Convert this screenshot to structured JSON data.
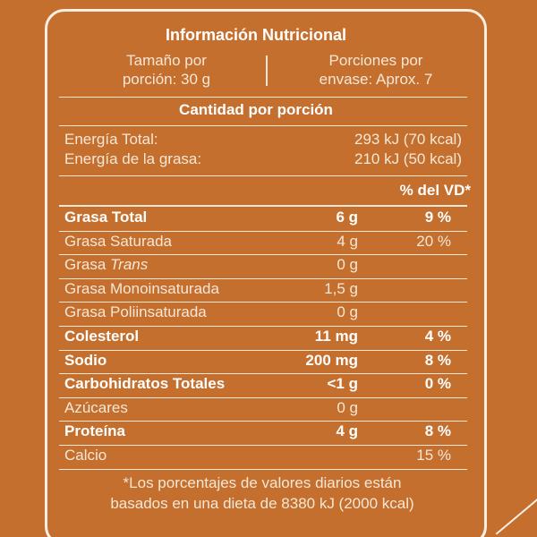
{
  "header": {
    "title": "Información Nutricional",
    "serving_size": [
      "Tamaño por",
      "porción: 30 g"
    ],
    "servings": [
      "Porciones por",
      "envase: Aprox. 7"
    ]
  },
  "amount_header": "Cantidad por porción",
  "energy": [
    [
      "Energía Total:",
      "293 kJ (70 kcal)"
    ],
    [
      "Energía de la grasa:",
      "210 kJ (50 kcal)"
    ]
  ],
  "dv_header": "% del VD*",
  "table": {
    "rows": [
      {
        "name": "Grasa Total",
        "amount": "6 g",
        "dv": "9 %",
        "bold": true
      },
      {
        "name": "Grasa Saturada",
        "amount": "4 g",
        "dv": "20 %",
        "bold": false
      },
      {
        "name": "Grasa",
        "name_italic": "Trans",
        "amount": "0 g",
        "bold": false
      },
      {
        "name": "Grasa Monoinsaturada",
        "amount": "1,5 g",
        "bold": false
      },
      {
        "name": "Grasa Poliinsaturada",
        "amount": "0 g",
        "bold": false
      },
      {
        "name": "Colesterol",
        "amount": "11 mg",
        "dv": "4 %",
        "bold": true
      },
      {
        "name": "Sodio",
        "amount": "200 mg",
        "dv": "8 %",
        "bold": true
      },
      {
        "name": "Carbohidratos Totales",
        "amount": "<1 g",
        "dv": "0 %",
        "bold": true
      },
      {
        "name": "Azúcares",
        "amount": "0 g",
        "bold": false
      },
      {
        "name": "Proteína",
        "amount": "4 g",
        "dv": "8 %",
        "bold": true
      },
      {
        "name": "Calcio",
        "dv": "15 %",
        "bold": false
      }
    ]
  },
  "footnote": [
    "*Los porcentajes de valores diarios están",
    "basados en una dieta de 8380 kJ (2000 kcal)"
  ]
}
